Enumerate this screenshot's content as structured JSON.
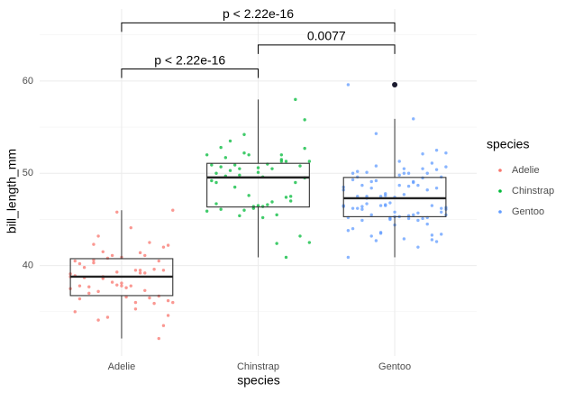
{
  "chart_data": {
    "type": "box",
    "x_label": "species",
    "y_label": "bill_length_mm",
    "legend_title": "species",
    "legend": "right",
    "grid": true,
    "ylim": [
      30.2,
      67.8
    ],
    "yticks": [
      40,
      50,
      60
    ],
    "minor_yticks": [
      35,
      45,
      55,
      65
    ],
    "categories": [
      "Adelie",
      "Chinstrap",
      "Gentoo"
    ],
    "series": [
      {
        "name": "Adelie",
        "color": "#F8766D",
        "min": 32.1,
        "q1": 36.75,
        "median": 38.8,
        "q3": 40.75,
        "max": 46.0,
        "outliers": [],
        "points": [
          39.1,
          39.5,
          40.3,
          36.7,
          39.3,
          38.9,
          39.2,
          34.1,
          42.0,
          37.8,
          37.8,
          41.1,
          38.6,
          34.6,
          36.6,
          38.7,
          42.5,
          34.4,
          46.0,
          37.8,
          37.7,
          35.9,
          38.2,
          38.8,
          35.3,
          40.6,
          40.5,
          37.9,
          40.5,
          39.5,
          37.2,
          39.5,
          40.9,
          36.4,
          39.2,
          38.8,
          42.2,
          37.6,
          39.8,
          36.5,
          40.8,
          36.0,
          44.1,
          37.0,
          39.6,
          41.1,
          37.5,
          36.0,
          42.3,
          32.1,
          45.8,
          35.0,
          41.4,
          43.2,
          33.5,
          38.1,
          40.2,
          37.3,
          41.5,
          36.2
        ]
      },
      {
        "name": "Chinstrap",
        "color": "#00BA38",
        "min": 40.9,
        "q1": 46.35,
        "median": 49.55,
        "q3": 51.08,
        "max": 58.0,
        "outliers": [],
        "points": [
          46.5,
          50.0,
          51.3,
          45.4,
          52.7,
          45.2,
          46.1,
          51.3,
          46.0,
          51.3,
          46.6,
          51.7,
          47.0,
          52.0,
          45.9,
          50.5,
          50.3,
          58.0,
          46.4,
          49.2,
          42.4,
          48.5,
          43.2,
          50.6,
          46.7,
          52.0,
          50.5,
          49.5,
          46.4,
          52.8,
          40.9,
          54.2,
          42.5,
          51.0,
          49.7,
          47.5,
          47.6,
          52.0,
          46.9,
          53.5,
          49.0,
          46.2,
          50.9,
          45.5,
          50.9,
          50.8,
          50.1,
          49.0,
          51.5,
          49.8,
          55.8,
          49.6,
          50.7,
          47.4,
          52.2
        ]
      },
      {
        "name": "Gentoo",
        "color": "#619CFF",
        "min": 40.9,
        "q1": 45.3,
        "median": 47.3,
        "q3": 49.55,
        "max": 55.9,
        "outliers": [
          59.6
        ],
        "points": [
          46.1,
          50.0,
          48.7,
          50.0,
          47.6,
          46.5,
          45.4,
          46.7,
          43.3,
          46.8,
          40.9,
          49.0,
          45.5,
          48.4,
          45.8,
          49.3,
          42.0,
          49.2,
          46.2,
          48.7,
          50.2,
          45.1,
          46.5,
          46.3,
          42.9,
          46.1,
          44.5,
          47.8,
          48.2,
          50.0,
          47.3,
          42.8,
          45.1,
          59.6,
          49.1,
          48.4,
          42.6,
          44.4,
          44.0,
          48.7,
          42.7,
          49.6,
          45.3,
          49.6,
          50.5,
          43.6,
          45.5,
          50.5,
          44.9,
          45.2,
          46.6,
          48.5,
          45.1,
          50.1,
          46.5,
          45.0,
          43.8,
          45.5,
          43.2,
          50.4,
          45.3,
          46.2,
          45.7,
          54.3,
          45.8,
          49.8,
          46.2,
          49.5,
          43.5,
          50.7,
          47.7,
          46.4,
          48.2,
          46.5,
          46.4,
          48.6,
          47.5,
          51.1,
          45.2,
          45.2,
          55.9,
          49.1,
          52.5,
          47.4,
          50.0,
          44.9,
          50.8,
          43.4,
          51.3,
          47.5,
          52.1,
          47.5,
          52.2
        ]
      }
    ],
    "comparisons": [
      {
        "groups": [
          "Adelie",
          "Chinstrap"
        ],
        "y": 61.3,
        "label": "p < 2.22e-16"
      },
      {
        "groups": [
          "Chinstrap",
          "Gentoo"
        ],
        "y": 63.9,
        "label": "0.0077"
      },
      {
        "groups": [
          "Adelie",
          "Gentoo"
        ],
        "y": 66.3,
        "label": "p < 2.22e-16"
      }
    ]
  }
}
